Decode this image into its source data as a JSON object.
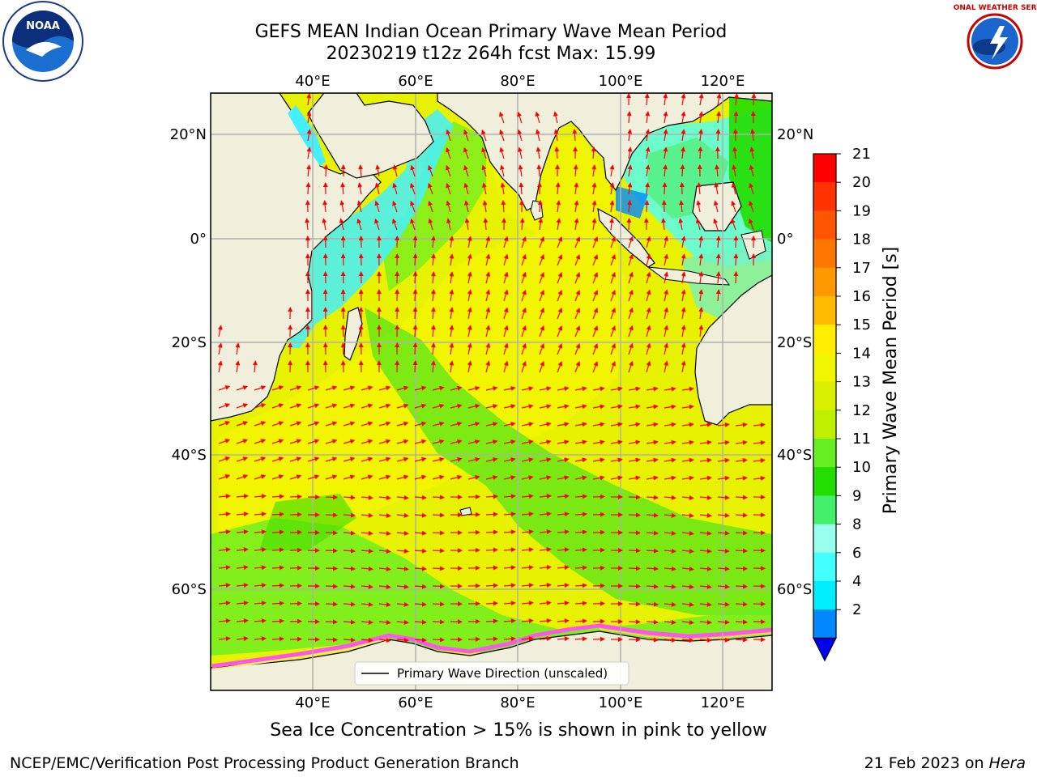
{
  "title": {
    "line1": "GEFS MEAN Indian Ocean Primary Wave Mean Period",
    "line2": "20230219 t12z 264h fcst   Max: 15.99"
  },
  "map": {
    "top_lon_labels": [
      "40°E",
      "60°E",
      "80°E",
      "100°E",
      "120°E"
    ],
    "bottom_lon_labels": [
      "40°E",
      "60°E",
      "80°E",
      "100°E",
      "120°E"
    ],
    "left_lat_labels": [
      "20°N",
      "0°",
      "20°S",
      "40°S",
      "60°S"
    ],
    "right_lat_labels": [
      "20°N",
      "0°",
      "20°S",
      "40°S",
      "60°S"
    ],
    "legend_label": "Primary Wave Direction (unscaled)"
  },
  "colorbar": {
    "label": "Primary Wave Mean Period [s]",
    "ticks": [
      "21",
      "20",
      "19",
      "18",
      "17",
      "16",
      "15",
      "14",
      "13",
      "12",
      "11",
      "10",
      "9",
      "8",
      "6",
      "4",
      "2"
    ],
    "colors": [
      "#ff0000",
      "#ff3300",
      "#ff5500",
      "#ff7700",
      "#ff9900",
      "#ffbb00",
      "#ffee00",
      "#f0f500",
      "#d8f000",
      "#bff000",
      "#66ee22",
      "#22dd00",
      "#44f06a",
      "#99ffee",
      "#44ffff",
      "#00eeff",
      "#0088ff"
    ],
    "extend_color": "#0000ee"
  },
  "subnote": "Sea Ice Concentration > 15% is shown in pink to yellow",
  "footer": {
    "left": "NCEP/EMC/Verification Post Processing Product Generation Branch",
    "right_prefix": "21 Feb 2023 on ",
    "right_italic": "Hera"
  },
  "logos": {
    "noaa_text": "NOAA",
    "nws_text": "NATIONAL WEATHER SERVICE"
  }
}
